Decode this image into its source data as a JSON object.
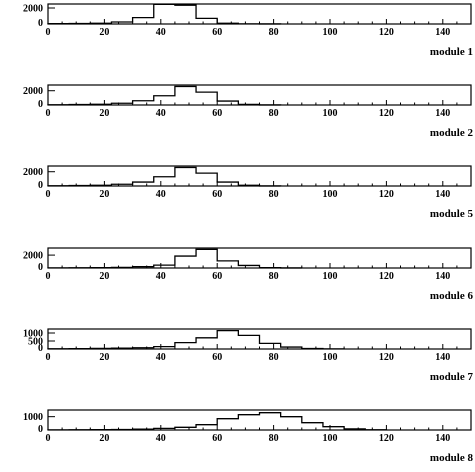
{
  "chart_data": [
    {
      "type": "histogram",
      "label": "module 1",
      "xlim": [
        0,
        150
      ],
      "ylim": [
        0,
        2500
      ],
      "x_ticks": [
        0,
        20,
        40,
        60,
        80,
        100,
        120,
        140
      ],
      "y_ticks": [
        0,
        2000
      ],
      "bin_width": 7.5,
      "bins": [
        {
          "x": [
            0,
            7.5
          ],
          "count": 40
        },
        {
          "x": [
            7.5,
            15
          ],
          "count": 60
        },
        {
          "x": [
            15,
            22.5
          ],
          "count": 90
        },
        {
          "x": [
            22.5,
            30
          ],
          "count": 250
        },
        {
          "x": [
            30,
            37.5
          ],
          "count": 800
        },
        {
          "x": [
            37.5,
            45
          ],
          "count": 2450
        },
        {
          "x": [
            45,
            52.5
          ],
          "count": 2350
        },
        {
          "x": [
            52.5,
            60
          ],
          "count": 700
        },
        {
          "x": [
            60,
            67.5
          ],
          "count": 90
        },
        {
          "x": [
            67.5,
            75
          ],
          "count": 20
        },
        {
          "x": [
            75,
            82.5
          ],
          "count": 5
        }
      ]
    },
    {
      "type": "histogram",
      "label": "module 2",
      "xlim": [
        0,
        150
      ],
      "ylim": [
        0,
        2800
      ],
      "x_ticks": [
        0,
        20,
        40,
        60,
        80,
        100,
        120,
        140
      ],
      "y_ticks": [
        0,
        2000
      ],
      "bin_width": 7.5,
      "bins": [
        {
          "x": [
            0,
            7.5
          ],
          "count": 40
        },
        {
          "x": [
            7.5,
            15
          ],
          "count": 60
        },
        {
          "x": [
            15,
            22.5
          ],
          "count": 100
        },
        {
          "x": [
            22.5,
            30
          ],
          "count": 250
        },
        {
          "x": [
            30,
            37.5
          ],
          "count": 600
        },
        {
          "x": [
            37.5,
            45
          ],
          "count": 1300
        },
        {
          "x": [
            45,
            52.5
          ],
          "count": 2600
        },
        {
          "x": [
            52.5,
            60
          ],
          "count": 1800
        },
        {
          "x": [
            60,
            67.5
          ],
          "count": 550
        },
        {
          "x": [
            67.5,
            75
          ],
          "count": 80
        },
        {
          "x": [
            75,
            82.5
          ],
          "count": 10
        }
      ]
    },
    {
      "type": "histogram",
      "label": "module 5",
      "xlim": [
        0,
        150
      ],
      "ylim": [
        0,
        2800
      ],
      "x_ticks": [
        0,
        20,
        40,
        60,
        80,
        100,
        120,
        140
      ],
      "y_ticks": [
        0,
        2000
      ],
      "bin_width": 7.5,
      "bins": [
        {
          "x": [
            0,
            7.5
          ],
          "count": 40
        },
        {
          "x": [
            7.5,
            15
          ],
          "count": 60
        },
        {
          "x": [
            15,
            22.5
          ],
          "count": 100
        },
        {
          "x": [
            22.5,
            30
          ],
          "count": 250
        },
        {
          "x": [
            30,
            37.5
          ],
          "count": 550
        },
        {
          "x": [
            37.5,
            45
          ],
          "count": 1300
        },
        {
          "x": [
            45,
            52.5
          ],
          "count": 2600
        },
        {
          "x": [
            52.5,
            60
          ],
          "count": 1800
        },
        {
          "x": [
            60,
            67.5
          ],
          "count": 550
        },
        {
          "x": [
            67.5,
            75
          ],
          "count": 100
        },
        {
          "x": [
            75,
            82.5
          ],
          "count": 10
        }
      ]
    },
    {
      "type": "histogram",
      "label": "module 6",
      "xlim": [
        0,
        150
      ],
      "ylim": [
        0,
        3100
      ],
      "x_ticks": [
        0,
        20,
        40,
        60,
        80,
        100,
        120,
        140
      ],
      "y_ticks": [
        0,
        2000
      ],
      "bin_width": 7.5,
      "bins": [
        {
          "x": [
            0,
            7.5
          ],
          "count": 20
        },
        {
          "x": [
            7.5,
            15
          ],
          "count": 30
        },
        {
          "x": [
            15,
            22.5
          ],
          "count": 50
        },
        {
          "x": [
            22.5,
            30
          ],
          "count": 100
        },
        {
          "x": [
            30,
            37.5
          ],
          "count": 200
        },
        {
          "x": [
            37.5,
            45
          ],
          "count": 450
        },
        {
          "x": [
            45,
            52.5
          ],
          "count": 1850
        },
        {
          "x": [
            52.5,
            60
          ],
          "count": 2900
        },
        {
          "x": [
            60,
            67.5
          ],
          "count": 1100
        },
        {
          "x": [
            67.5,
            75
          ],
          "count": 400
        },
        {
          "x": [
            75,
            82.5
          ],
          "count": 60
        },
        {
          "x": [
            82.5,
            90
          ],
          "count": 10
        }
      ]
    },
    {
      "type": "histogram",
      "label": "module 7",
      "xlim": [
        0,
        150
      ],
      "ylim": [
        0,
        1250
      ],
      "x_ticks": [
        0,
        20,
        40,
        60,
        80,
        100,
        120,
        140
      ],
      "y_ticks": [
        0,
        500,
        1000
      ],
      "bin_width": 7.5,
      "bins": [
        {
          "x": [
            0,
            7.5
          ],
          "count": 15
        },
        {
          "x": [
            7.5,
            15
          ],
          "count": 25
        },
        {
          "x": [
            15,
            22.5
          ],
          "count": 35
        },
        {
          "x": [
            22.5,
            30
          ],
          "count": 50
        },
        {
          "x": [
            30,
            37.5
          ],
          "count": 80
        },
        {
          "x": [
            37.5,
            45
          ],
          "count": 150
        },
        {
          "x": [
            45,
            52.5
          ],
          "count": 400
        },
        {
          "x": [
            52.5,
            60
          ],
          "count": 700
        },
        {
          "x": [
            60,
            67.5
          ],
          "count": 1150
        },
        {
          "x": [
            67.5,
            75
          ],
          "count": 850
        },
        {
          "x": [
            75,
            82.5
          ],
          "count": 350
        },
        {
          "x": [
            82.5,
            90
          ],
          "count": 120
        },
        {
          "x": [
            90,
            97.5
          ],
          "count": 30
        },
        {
          "x": [
            97.5,
            105
          ],
          "count": 8
        }
      ]
    },
    {
      "type": "histogram",
      "label": "module 8",
      "xlim": [
        0,
        150
      ],
      "ylim": [
        0,
        1500
      ],
      "x_ticks": [
        0,
        20,
        40,
        60,
        80,
        100,
        120,
        140
      ],
      "y_ticks": [
        0,
        1000
      ],
      "bin_width": 7.5,
      "bins": [
        {
          "x": [
            0,
            7.5
          ],
          "count": 10
        },
        {
          "x": [
            7.5,
            15
          ],
          "count": 15
        },
        {
          "x": [
            15,
            22.5
          ],
          "count": 25
        },
        {
          "x": [
            22.5,
            30
          ],
          "count": 35
        },
        {
          "x": [
            30,
            37.5
          ],
          "count": 60
        },
        {
          "x": [
            37.5,
            45
          ],
          "count": 120
        },
        {
          "x": [
            45,
            52.5
          ],
          "count": 200
        },
        {
          "x": [
            52.5,
            60
          ],
          "count": 400
        },
        {
          "x": [
            60,
            67.5
          ],
          "count": 850
        },
        {
          "x": [
            67.5,
            75
          ],
          "count": 1150
        },
        {
          "x": [
            75,
            82.5
          ],
          "count": 1300
        },
        {
          "x": [
            82.5,
            90
          ],
          "count": 1000
        },
        {
          "x": [
            90,
            97.5
          ],
          "count": 550
        },
        {
          "x": [
            97.5,
            105
          ],
          "count": 250
        },
        {
          "x": [
            105,
            112.5
          ],
          "count": 80
        },
        {
          "x": [
            112.5,
            120
          ],
          "count": 20
        }
      ]
    }
  ]
}
